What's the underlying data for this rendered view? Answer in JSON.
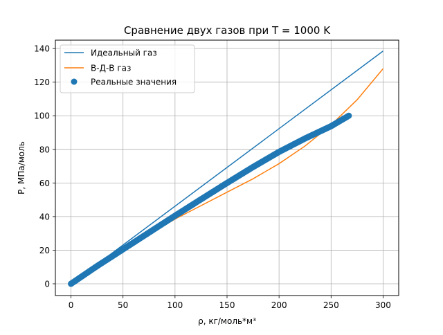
{
  "chart_data": {
    "type": "line",
    "title": "Сравнение двух газов при T = 1000 K",
    "xlabel": "ρ, кг/моль*м³",
    "ylabel": "P, МПа/моль",
    "xlim": [
      -15,
      315
    ],
    "ylim": [
      -7,
      145
    ],
    "xticks": [
      0,
      50,
      100,
      150,
      200,
      250,
      300
    ],
    "yticks": [
      0,
      20,
      40,
      60,
      80,
      100,
      120,
      140
    ],
    "grid": true,
    "legend_position": "top-left",
    "series": [
      {
        "name": "Идеальный газ",
        "kind": "line",
        "color": "#1f77b4",
        "x": [
          0,
          300
        ],
        "y": [
          0,
          138.5
        ]
      },
      {
        "name": "В-Д-В газ",
        "kind": "line",
        "color": "#ff7f0e",
        "x": [
          0,
          25,
          50,
          75,
          100,
          125,
          150,
          175,
          200,
          225,
          250,
          275,
          300
        ],
        "y": [
          0,
          10.8,
          20.5,
          29.5,
          38.5,
          46.5,
          54.5,
          62.5,
          71.5,
          82,
          94.5,
          109.5,
          128
        ]
      },
      {
        "name": "Реальные значения",
        "kind": "scatter",
        "color": "#1f77b4",
        "x": [
          0,
          25,
          50,
          75,
          100,
          125,
          150,
          175,
          200,
          225,
          250,
          267
        ],
        "y": [
          0,
          10.5,
          20.5,
          30.5,
          40.5,
          50.3,
          60,
          69.5,
          78.5,
          86.5,
          93.8,
          100
        ]
      }
    ]
  }
}
